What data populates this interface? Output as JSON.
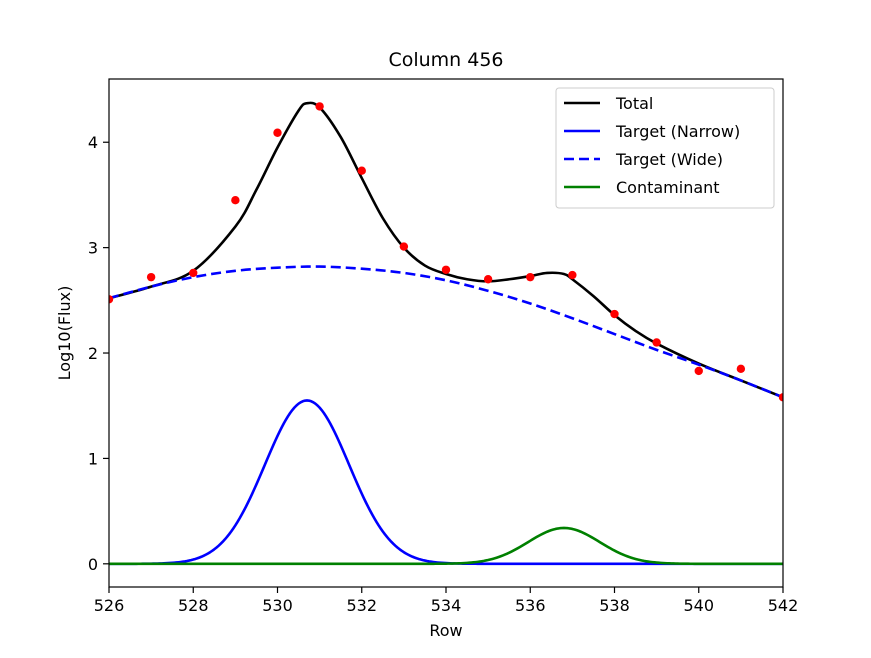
{
  "chart_data": {
    "type": "line",
    "title": "Column 456",
    "xlabel": "Row",
    "ylabel": "Log10(Flux)",
    "xlim": [
      526,
      542
    ],
    "ylim": [
      -0.22,
      4.6
    ],
    "x_ticks": [
      526,
      528,
      530,
      532,
      534,
      536,
      538,
      540,
      542
    ],
    "y_ticks": [
      0,
      1,
      2,
      3,
      4
    ],
    "legend_position": "top-right",
    "grid": false,
    "series": [
      {
        "name": "Total",
        "color": "#000000",
        "style": "solid",
        "x": [
          526,
          527,
          528,
          529,
          529.5,
          530,
          530.5,
          530.7,
          531,
          531.5,
          532,
          532.5,
          533,
          533.5,
          534,
          534.5,
          535,
          535.5,
          536,
          536.4,
          536.8,
          537,
          537.5,
          538,
          538.5,
          539,
          540,
          541,
          542
        ],
        "y": [
          2.52,
          2.63,
          2.78,
          3.2,
          3.55,
          3.95,
          4.3,
          4.37,
          4.33,
          4.05,
          3.66,
          3.28,
          3.0,
          2.83,
          2.75,
          2.7,
          2.68,
          2.7,
          2.73,
          2.76,
          2.75,
          2.7,
          2.54,
          2.36,
          2.21,
          2.09,
          1.9,
          1.74,
          1.58
        ]
      },
      {
        "name": "Target (Narrow)",
        "color": "#0000ff",
        "style": "solid",
        "curve": {
          "amplitude": 1.55,
          "center": 530.7,
          "sigma": 1.0
        }
      },
      {
        "name": "Target (Wide)",
        "color": "#0000ff",
        "style": "dashed",
        "x": [
          526,
          527,
          528,
          529,
          530,
          531,
          532,
          533,
          534,
          535,
          536,
          537,
          538,
          539,
          540,
          541,
          542
        ],
        "y": [
          2.52,
          2.63,
          2.72,
          2.78,
          2.81,
          2.82,
          2.8,
          2.76,
          2.69,
          2.59,
          2.47,
          2.33,
          2.18,
          2.03,
          1.89,
          1.74,
          1.58
        ]
      },
      {
        "name": "Contaminant",
        "color": "#008000",
        "style": "solid",
        "curve": {
          "amplitude": 0.34,
          "center": 536.8,
          "sigma": 0.85
        }
      }
    ],
    "points": {
      "color": "#ff0000",
      "x": [
        526,
        527,
        528,
        529,
        530,
        531,
        532,
        533,
        534,
        535,
        536,
        537,
        538,
        539,
        540,
        541,
        542
      ],
      "y": [
        2.51,
        2.72,
        2.76,
        3.45,
        4.09,
        4.34,
        3.73,
        3.01,
        2.79,
        2.7,
        2.72,
        2.74,
        2.37,
        2.1,
        1.83,
        1.85,
        1.58
      ]
    }
  }
}
